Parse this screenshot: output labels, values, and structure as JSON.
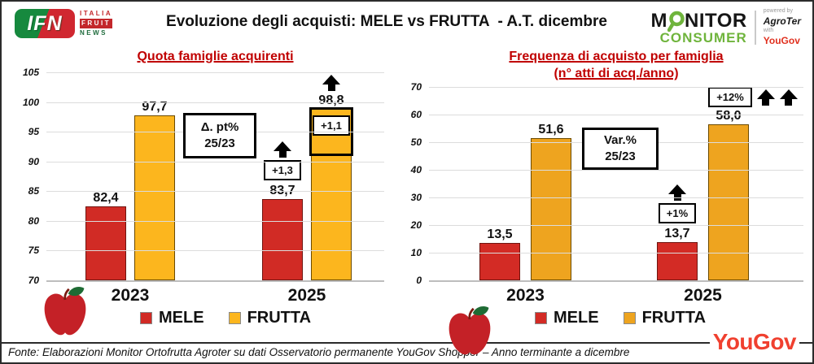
{
  "header": {
    "title": "Evoluzione degli acquisti: MELE vs FRUTTA  - A.T. dicembre",
    "ifn": {
      "abbr": "IFN",
      "italia": "ITALIA",
      "fruit": "FRUIT",
      "news": "NEWS"
    },
    "monitor": {
      "m": "M",
      "nitor": "NITOR",
      "consumer": "CONSUMER",
      "powered_by": "powered by",
      "agroter": "AgroTer",
      "with": "with",
      "yougov": "YouGov"
    }
  },
  "chart_data": {
    "type": "bar",
    "categories": [
      "2023",
      "2025"
    ],
    "legend": [
      "MELE",
      "FRUTTA"
    ],
    "legend_position": "bottom",
    "grid": "horizontal",
    "charts": [
      {
        "title": "Quota famiglie acquirenti",
        "ylim": [
          70,
          105
        ],
        "ytick_step": 5,
        "yticks_top_to_bottom": [
          "105",
          "100",
          "95",
          "90",
          "85",
          "80",
          "75",
          "70"
        ],
        "series": [
          {
            "name": "MELE",
            "color": "#D12B25",
            "border": "#701510",
            "values": [
              82.4,
              83.7
            ],
            "value_labels": [
              "82,4",
              "83,7"
            ]
          },
          {
            "name": "FRUTTA",
            "color": "#FCB61E",
            "border": "#6b4a00",
            "values": [
              97.7,
              98.8
            ],
            "value_labels": [
              "97,7",
              "98,8"
            ]
          }
        ],
        "note_line1": "Δ. pt%",
        "note_line2": "25/23",
        "delta_mele": "+1,3",
        "delta_frutta": "+1,1"
      },
      {
        "title_line1": "Frequenza di acquisto per famiglia",
        "title_line2": "(n° atti di acq./anno)",
        "ylim": [
          0,
          70
        ],
        "ytick_step": 10,
        "yticks_top_to_bottom": [
          "70",
          "60",
          "50",
          "40",
          "30",
          "20",
          "10",
          "0"
        ],
        "series": [
          {
            "name": "MELE",
            "color": "#D32B25",
            "border": "#701510",
            "values": [
              13.5,
              13.7
            ],
            "value_labels": [
              "13,5",
              "13,7"
            ]
          },
          {
            "name": "FRUTTA",
            "color": "#EEA41F",
            "border": "#6b4a00",
            "values": [
              51.6,
              58.0
            ],
            "value_labels": [
              "51,6",
              "58,0"
            ]
          }
        ],
        "note_line1": "Var.%",
        "note_line2": "25/23",
        "delta_mele": "+1%",
        "delta_frutta": "+12%"
      }
    ]
  },
  "footer": {
    "source": "Fonte: Elaborazioni Monitor Ortofrutta Agroter su dati Osservatorio permanente YouGov Shopper  – Anno terminante a dicembre",
    "yougov_brand": "YouGov"
  }
}
